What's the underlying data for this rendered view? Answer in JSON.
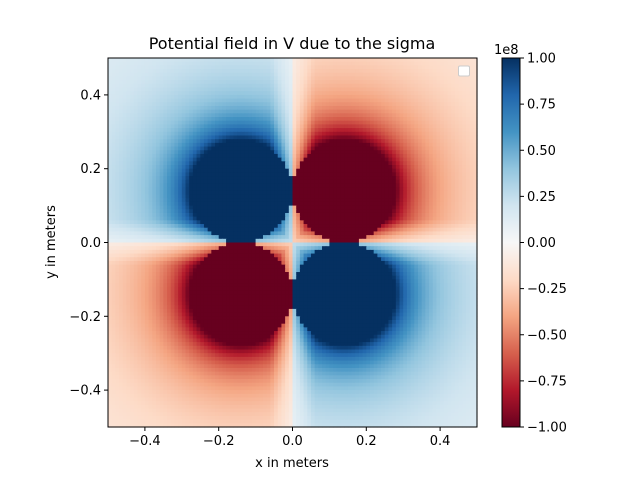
{
  "chart_data": {
    "type": "heatmap",
    "title": "Potential field in V due to the sigma",
    "xlabel": "x in meters",
    "ylabel": "y in meters",
    "xlim": [
      -0.5,
      0.5
    ],
    "ylim": [
      -0.5,
      0.5
    ],
    "x_ticks": [
      -0.4,
      -0.2,
      0.0,
      0.2,
      0.4
    ],
    "y_ticks": [
      -0.4,
      -0.2,
      0.0,
      0.2,
      0.4
    ],
    "x_tick_labels": [
      "−0.4",
      "−0.2",
      "0.0",
      "0.2",
      "0.4"
    ],
    "y_tick_labels": [
      "−0.4",
      "−0.2",
      "0.0",
      "0.2",
      "0.4"
    ],
    "colormap": "RdBu",
    "colormap_stops": [
      "#67001f",
      "#b2182b",
      "#d6604d",
      "#f4a582",
      "#fddbc7",
      "#f7f7f7",
      "#d1e5f0",
      "#92c5de",
      "#4393c3",
      "#2166ac",
      "#053061"
    ],
    "color_range": [
      -1.0,
      1.0
    ],
    "grid": false,
    "legend": "top-right (empty)",
    "pattern": "quadrupole: positive (blue) in upper-left and lower-right quadrants, negative (red) in upper-right and lower-left quadrants, saturated discs centered near (±0.14, ±0.14) with radius about 0.14, zero along x = 0 and y = 0",
    "colorbar": {
      "multiplier_label": "1e8",
      "ticks": [
        1.0,
        0.75,
        0.5,
        0.25,
        0.0,
        -0.25,
        -0.5,
        -0.75,
        -1.0
      ],
      "tick_labels": [
        "1.00",
        "0.75",
        "0.50",
        "0.25",
        "0.00",
        "−0.25",
        "−0.50",
        "−0.75",
        "−1.00"
      ]
    }
  }
}
